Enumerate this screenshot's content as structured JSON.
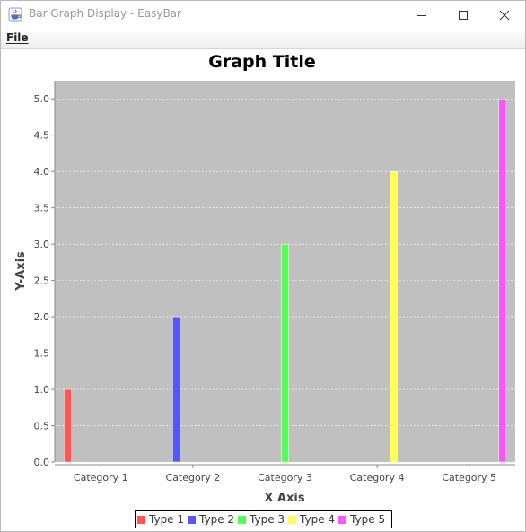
{
  "window": {
    "title": "Bar Graph Display - EasyBar"
  },
  "menu": {
    "file": "File"
  },
  "colors": {
    "plot_bg": "#c0c0c0",
    "type1": "#ff5555",
    "type2": "#5555ff",
    "type3": "#55ff55",
    "type4": "#ffff55",
    "type5": "#ff55ff"
  },
  "chart_data": {
    "type": "bar",
    "title": "Graph Title",
    "xlabel": "X Axis",
    "ylabel": "Y-Axis",
    "categories": [
      "Category 1",
      "Category 2",
      "Category 3",
      "Category 4",
      "Category 5"
    ],
    "series": [
      {
        "name": "Type 1",
        "values": [
          1.0,
          0,
          0,
          0,
          0
        ]
      },
      {
        "name": "Type 2",
        "values": [
          0,
          2.0,
          0,
          0,
          0
        ]
      },
      {
        "name": "Type 3",
        "values": [
          0,
          0,
          3.0,
          0,
          0
        ]
      },
      {
        "name": "Type 4",
        "values": [
          0,
          0,
          0,
          4.0,
          0
        ]
      },
      {
        "name": "Type 5",
        "values": [
          0,
          0,
          0,
          0,
          5.0
        ]
      }
    ],
    "ylim": [
      0,
      5.25
    ],
    "yticks": [
      "0.0",
      "0.5",
      "1.0",
      "1.5",
      "2.0",
      "2.5",
      "3.0",
      "3.5",
      "4.0",
      "4.5",
      "5.0"
    ],
    "grid": true,
    "legend_position": "bottom"
  }
}
